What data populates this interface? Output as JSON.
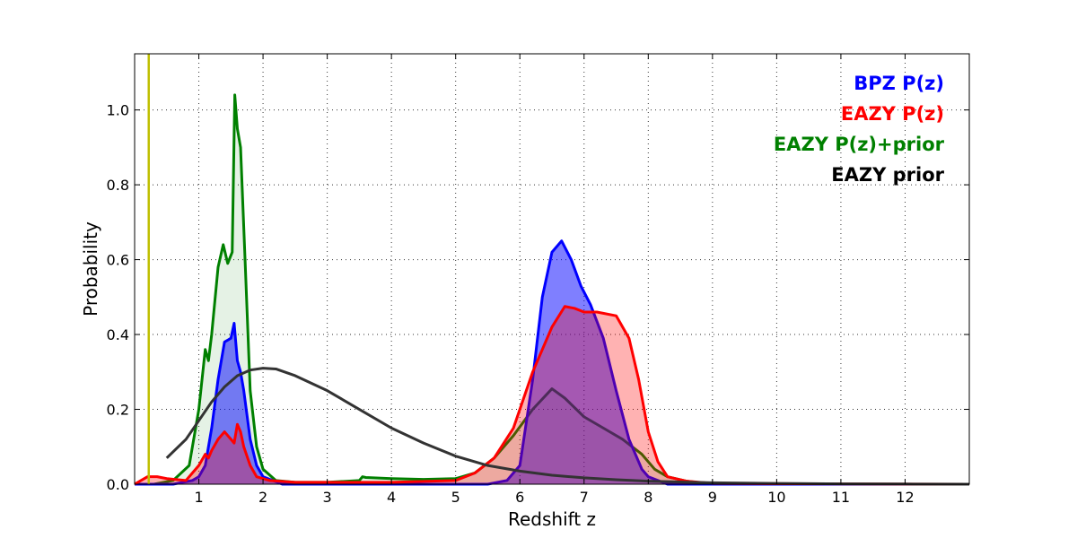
{
  "chart_data": {
    "type": "area",
    "title": "",
    "xlabel": "Redshift z",
    "ylabel": "Probability",
    "xlim": [
      0,
      13
    ],
    "ylim": [
      0,
      1.15
    ],
    "xticks": [
      1,
      2,
      3,
      4,
      5,
      6,
      7,
      8,
      9,
      10,
      11,
      12
    ],
    "yticks": [
      "0.0",
      "0.2",
      "0.4",
      "0.6",
      "0.8",
      "1.0"
    ],
    "grid": true,
    "legend_placement": "top-right",
    "reference_line": {
      "x": 0.22,
      "color": "#bfbf00"
    },
    "series": [
      {
        "name": "EAZY P(z)+prior",
        "color": "#008000",
        "fill_opacity": 0.1,
        "x": [
          0,
          0.3,
          0.6,
          0.85,
          1.0,
          1.1,
          1.15,
          1.2,
          1.3,
          1.38,
          1.45,
          1.52,
          1.56,
          1.6,
          1.65,
          1.72,
          1.8,
          1.9,
          2.0,
          2.2,
          2.5,
          3.0,
          3.5,
          3.55,
          3.6,
          4.0,
          4.5,
          5.0,
          5.3,
          5.6,
          5.9,
          6.2,
          6.5,
          6.7,
          7.0,
          7.3,
          7.6,
          7.9,
          8.1,
          8.3,
          8.6,
          9.0,
          10.0,
          13.0
        ],
        "values": [
          0.0,
          0.0,
          0.01,
          0.05,
          0.2,
          0.36,
          0.33,
          0.4,
          0.58,
          0.64,
          0.59,
          0.62,
          1.04,
          0.95,
          0.9,
          0.6,
          0.25,
          0.1,
          0.04,
          0.01,
          0.005,
          0.005,
          0.01,
          0.02,
          0.018,
          0.015,
          0.013,
          0.015,
          0.03,
          0.07,
          0.13,
          0.2,
          0.255,
          0.23,
          0.18,
          0.15,
          0.12,
          0.08,
          0.04,
          0.02,
          0.008,
          0.0,
          0.0,
          0.0
        ]
      },
      {
        "name": "BPZ P(z)",
        "color": "#0000ff",
        "fill_opacity": 0.5,
        "x": [
          0,
          0.6,
          0.9,
          1.0,
          1.1,
          1.2,
          1.3,
          1.4,
          1.5,
          1.55,
          1.6,
          1.65,
          1.7,
          1.8,
          1.9,
          2.0,
          2.3,
          5.5,
          5.8,
          6.0,
          6.2,
          6.35,
          6.5,
          6.65,
          6.8,
          6.95,
          7.1,
          7.3,
          7.5,
          7.7,
          7.9,
          8.0,
          8.3,
          13.0
        ],
        "values": [
          0.0,
          0.0,
          0.01,
          0.02,
          0.05,
          0.15,
          0.28,
          0.38,
          0.39,
          0.43,
          0.33,
          0.3,
          0.25,
          0.12,
          0.05,
          0.02,
          0.0,
          0.0,
          0.01,
          0.05,
          0.28,
          0.5,
          0.62,
          0.65,
          0.6,
          0.53,
          0.48,
          0.39,
          0.25,
          0.12,
          0.04,
          0.02,
          0.0,
          0.0
        ]
      },
      {
        "name": "EAZY P(z)",
        "color": "#ff0000",
        "fill_opacity": 0.3,
        "x": [
          0,
          0.1,
          0.2,
          0.35,
          0.5,
          0.8,
          1.0,
          1.1,
          1.15,
          1.2,
          1.3,
          1.4,
          1.5,
          1.55,
          1.6,
          1.65,
          1.7,
          1.8,
          1.9,
          2.1,
          2.5,
          4.0,
          5.0,
          5.3,
          5.6,
          5.9,
          6.2,
          6.5,
          6.7,
          6.85,
          7.0,
          7.2,
          7.5,
          7.7,
          7.85,
          8.0,
          8.15,
          8.3,
          8.6,
          9.0,
          13.0
        ],
        "values": [
          0.0,
          0.01,
          0.02,
          0.02,
          0.015,
          0.01,
          0.05,
          0.08,
          0.07,
          0.09,
          0.12,
          0.14,
          0.12,
          0.11,
          0.16,
          0.14,
          0.1,
          0.05,
          0.02,
          0.01,
          0.005,
          0.005,
          0.01,
          0.03,
          0.07,
          0.15,
          0.3,
          0.42,
          0.475,
          0.47,
          0.46,
          0.46,
          0.45,
          0.39,
          0.28,
          0.14,
          0.06,
          0.02,
          0.008,
          0.002,
          0.0
        ]
      },
      {
        "name": "EAZY prior",
        "color": "#333333",
        "fill_opacity": 0,
        "x": [
          0.5,
          0.8,
          1.0,
          1.2,
          1.4,
          1.6,
          1.8,
          2.0,
          2.2,
          2.5,
          3.0,
          3.5,
          4.0,
          4.5,
          5.0,
          5.5,
          6.0,
          6.5,
          7.0,
          7.5,
          8.0,
          9.0,
          10.0,
          11.0,
          12.0,
          13.0
        ],
        "values": [
          0.07,
          0.12,
          0.17,
          0.22,
          0.26,
          0.29,
          0.305,
          0.31,
          0.308,
          0.29,
          0.25,
          0.2,
          0.15,
          0.11,
          0.075,
          0.05,
          0.035,
          0.024,
          0.017,
          0.012,
          0.008,
          0.004,
          0.002,
          0.001,
          0.0005,
          0.0
        ]
      }
    ],
    "legend": [
      {
        "label": "BPZ P(z)",
        "color": "#0000ff"
      },
      {
        "label": "EAZY P(z)",
        "color": "#ff0000"
      },
      {
        "label": "EAZY P(z)+prior",
        "color": "#008000"
      },
      {
        "label": "EAZY prior",
        "color": "#000000"
      }
    ]
  }
}
